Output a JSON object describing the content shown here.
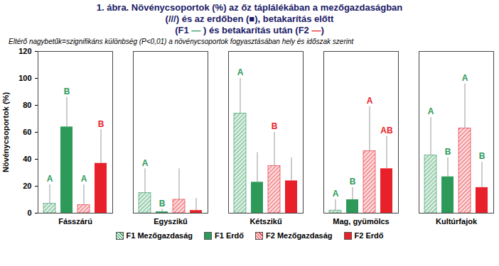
{
  "chart_data": {
    "type": "bar",
    "title": "1. ábra. Növénycsoportok (%) az őz táplálékában a mezőgazdaságban\n(///) és az erdőben (■), betakarítás előtt\n(F1 — ) és betakarítás után (F2 —)",
    "subtitle": "Eltérő nagybetűk=szignifikáns különbség (P<0,01) a növénycsoportok fogyasztásában hely és időszak  szerint",
    "y_label": "Növénycsoportok (%)",
    "categories": [
      "Fásszárú",
      "Egyszikű",
      "Kétszikű",
      "Mag, gyümölcs",
      "Kultúrfajok"
    ],
    "series": [
      {
        "name": "F1 Mezőgazdaság",
        "color": "#2e9a5a",
        "marker": "hatch",
        "values": [
          7,
          15,
          74,
          2,
          43
        ],
        "errors": [
          14,
          18,
          26,
          8,
          28
        ]
      },
      {
        "name": "F1 Erdő",
        "color": "#2e9a5a",
        "values": [
          64,
          1,
          23,
          10,
          27
        ],
        "errors": [
          22,
          2,
          22,
          9,
          14
        ]
      },
      {
        "name": "F2 Mezőgazdaság",
        "color": "#e8202a",
        "marker": "hatch",
        "values": [
          6,
          10,
          35,
          46,
          63
        ],
        "errors": [
          15,
          23,
          25,
          33,
          33
        ]
      },
      {
        "name": "F2 Erdő",
        "color": "#e8202a",
        "values": [
          37,
          2,
          24,
          33,
          19
        ],
        "errors": [
          25,
          9,
          17,
          24,
          19
        ]
      }
    ],
    "annotations": [
      {
        "text": "A",
        "category": "Fásszárú",
        "series": "F1 Mezőgazdaság",
        "color": "#2e9a5a"
      },
      {
        "text": "B",
        "category": "Fásszárú",
        "series": "F1 Erdő",
        "color": "#2e9a5a"
      },
      {
        "text": "A",
        "category": "Fásszárú",
        "series": "F2 Mezőgazdaság",
        "color": "#2e9a5a"
      },
      {
        "text": "B",
        "category": "Fásszárú",
        "series": "F2 Erdő",
        "color": "#e8202a"
      },
      {
        "text": "A",
        "category": "Egyszikű",
        "series": "F1 Mezőgazdaság",
        "color": "#2e9a5a"
      },
      {
        "text": "B",
        "category": "Egyszikű",
        "series": "F1 Erdő",
        "color": "#2e9a5a"
      },
      {
        "text": "A",
        "category": "Kétszikű",
        "series": "F1 Mezőgazdaság",
        "color": "#2e9a5a"
      },
      {
        "text": "B",
        "category": "Kétszikű",
        "series": "F2 Mezőgazdaság",
        "color": "#e8202a"
      },
      {
        "text": "A",
        "category": "Mag, gyümölcs",
        "series": "F1 Mezőgazdaság",
        "color": "#2e9a5a"
      },
      {
        "text": "B",
        "category": "Mag, gyümölcs",
        "series": "F1 Erdő",
        "color": "#2e9a5a"
      },
      {
        "text": "A",
        "category": "Mag, gyümölcs",
        "series": "F2 Mezőgazdaság",
        "color": "#e8202a"
      },
      {
        "text": "AB",
        "category": "Mag, gyümölcs",
        "series": "F2 Erdő",
        "color": "#e8202a"
      },
      {
        "text": "A",
        "category": "Kultúrfajok",
        "series": "F1 Mezőgazdaság",
        "color": "#2e9a5a"
      },
      {
        "text": "B",
        "category": "Kultúrfajok",
        "series": "F1 Erdő",
        "color": "#2e9a5a"
      },
      {
        "text": "A",
        "category": "Kultúrfajok",
        "series": "F2 Mezőgazdaság",
        "color": "#2e9a5a"
      },
      {
        "text": "B",
        "category": "Kultúrfajok",
        "series": "F2 Erdő",
        "color": "#2e9a5a"
      }
    ],
    "ylim": [
      0,
      120
    ],
    "yticks": [
      0,
      20,
      40,
      60,
      80,
      100,
      120
    ],
    "grid": false,
    "legend": "bottom"
  }
}
